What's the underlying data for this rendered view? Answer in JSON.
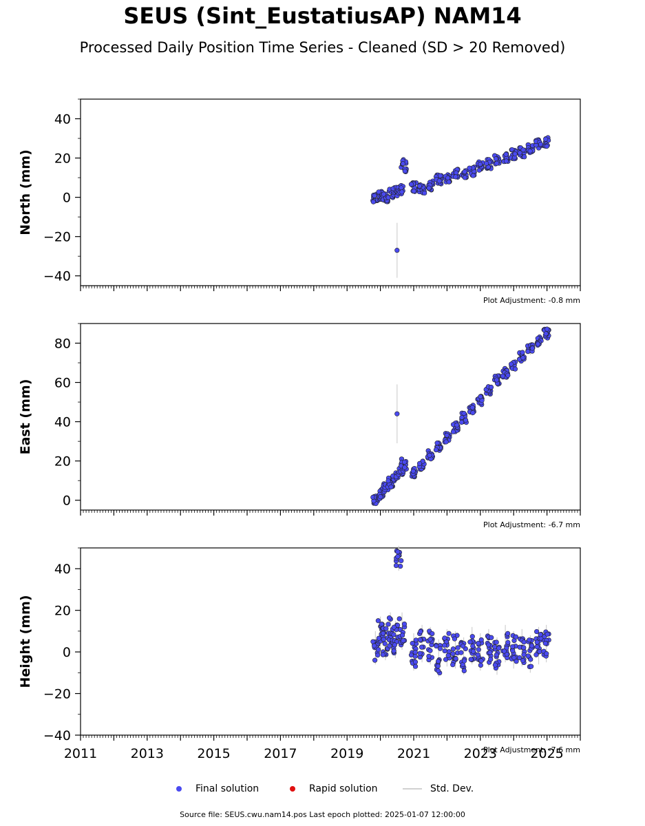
{
  "title": "SEUS (Sint_EustatiusAP) NAM14",
  "subtitle": "Processed Daily Position Time Series - Cleaned (SD > 20 Removed)",
  "legend": {
    "final_label": "Final solution",
    "rapid_label": "Rapid solution",
    "std_label": "Std. Dev.",
    "final_color": "#4a4af0",
    "rapid_color": "#e01010",
    "std_color": "#d0d0d0"
  },
  "source_text": "Source file: SEUS.cwu.nam14.pos  Last epoch plotted: 2025-01-07 12:00:00",
  "chart_data": [
    {
      "type": "scatter",
      "ylabel": "North (mm)",
      "adjustment": "Plot Adjustment: -0.8 mm",
      "xlim": [
        2011,
        2026
      ],
      "ylim": [
        -45,
        50
      ],
      "yticks": [
        -40,
        -20,
        0,
        20,
        40
      ],
      "ytick_labels": [
        "−40",
        "−20",
        "0",
        "20",
        "40"
      ],
      "series": [
        {
          "x": [
            2019.85,
            2020.0,
            2020.15,
            2020.3,
            2020.45,
            2020.5,
            2020.6,
            2020.7,
            2021.0,
            2021.25,
            2021.5,
            2021.75,
            2022.0,
            2022.25,
            2022.5,
            2022.75,
            2023.0,
            2023.25,
            2023.5,
            2023.75,
            2024.0,
            2024.25,
            2024.5,
            2024.75,
            2024.98
          ],
          "y": [
            0,
            1,
            0,
            2,
            3,
            -27,
            4,
            16,
            5,
            4,
            6,
            9,
            10,
            12,
            12,
            13,
            16,
            17,
            19,
            20,
            22,
            23,
            25,
            27,
            28
          ],
          "err": [
            3,
            3,
            3,
            3,
            3,
            14,
            3,
            4,
            3,
            3,
            3,
            3,
            3,
            3,
            3,
            3,
            3,
            3,
            3,
            3,
            3,
            3,
            3,
            3,
            3
          ]
        }
      ]
    },
    {
      "type": "scatter",
      "ylabel": "East (mm)",
      "adjustment": "Plot Adjustment: -6.7 mm",
      "xlim": [
        2011,
        2026
      ],
      "ylim": [
        -5,
        90
      ],
      "yticks": [
        0,
        20,
        40,
        60,
        80
      ],
      "ytick_labels": [
        "0",
        "20",
        "40",
        "60",
        "80"
      ],
      "series": [
        {
          "x": [
            2019.85,
            2020.0,
            2020.15,
            2020.3,
            2020.45,
            2020.5,
            2020.6,
            2020.7,
            2021.0,
            2021.25,
            2021.5,
            2021.75,
            2022.0,
            2022.25,
            2022.5,
            2022.75,
            2023.0,
            2023.25,
            2023.5,
            2023.75,
            2024.0,
            2024.25,
            2024.5,
            2024.75,
            2024.98
          ],
          "y": [
            0,
            3,
            6,
            9,
            12,
            44,
            15,
            18,
            14,
            18,
            23,
            27,
            32,
            37,
            42,
            46,
            51,
            56,
            61,
            65,
            69,
            73,
            77,
            81,
            85
          ],
          "err": [
            3,
            3,
            3,
            3,
            3,
            15,
            3,
            4,
            3,
            3,
            3,
            3,
            3,
            3,
            3,
            3,
            3,
            3,
            3,
            3,
            3,
            3,
            3,
            3,
            3
          ]
        }
      ]
    },
    {
      "type": "scatter",
      "ylabel": "Height (mm)",
      "adjustment": "Plot Adjustment: -7.6 mm",
      "xlim": [
        2011,
        2026
      ],
      "ylim": [
        -40,
        50
      ],
      "yticks": [
        -40,
        -20,
        0,
        20,
        40
      ],
      "ytick_labels": [
        "−40",
        "−20",
        "0",
        "20",
        "40"
      ],
      "xticks": [
        2011,
        2013,
        2015,
        2017,
        2019,
        2021,
        2023,
        2025
      ],
      "xtick_labels": [
        "2011",
        "2013",
        "2015",
        "2017",
        "2019",
        "2021",
        "2023",
        "2025"
      ],
      "series": [
        {
          "x": [
            2019.85,
            2020.0,
            2020.15,
            2020.3,
            2020.45,
            2020.55,
            2020.65,
            2021.0,
            2021.25,
            2021.5,
            2021.75,
            2022.0,
            2022.25,
            2022.5,
            2022.75,
            2023.0,
            2023.25,
            2023.5,
            2023.75,
            2024.0,
            2024.25,
            2024.5,
            2024.75,
            2024.98
          ],
          "y": [
            2,
            8,
            5,
            10,
            6,
            45,
            10,
            0,
            4,
            3,
            -3,
            2,
            1,
            -2,
            3,
            0,
            2,
            -2,
            4,
            1,
            2,
            -1,
            3,
            4
          ],
          "err": [
            8,
            9,
            9,
            9,
            9,
            6,
            9,
            9,
            9,
            9,
            9,
            9,
            9,
            9,
            9,
            9,
            9,
            9,
            9,
            9,
            9,
            9,
            9,
            9
          ]
        }
      ]
    }
  ]
}
